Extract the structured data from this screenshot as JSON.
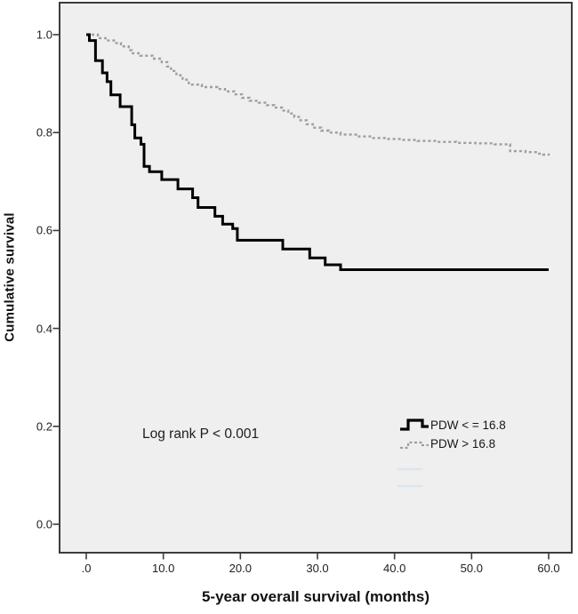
{
  "figure": {
    "y_axis": {
      "title": "Cumulative survival",
      "ticks": [
        {
          "label": "1.0",
          "value": 1.0
        },
        {
          "label": "0.8",
          "value": 0.8
        },
        {
          "label": "0.6",
          "value": 0.6
        },
        {
          "label": "0.4",
          "value": 0.4
        },
        {
          "label": "0.2",
          "value": 0.2
        },
        {
          "label": "0.0",
          "value": 0.0
        }
      ]
    },
    "x_axis": {
      "title": "5-year overall survival (months)",
      "ticks": [
        {
          "label": ".0",
          "value": 0
        },
        {
          "label": "10.0",
          "value": 10
        },
        {
          "label": "20.0",
          "value": 20
        },
        {
          "label": "30.0",
          "value": 30
        },
        {
          "label": "40.0",
          "value": 40
        },
        {
          "label": "50.0",
          "value": 50
        },
        {
          "label": "60.0",
          "value": 60
        }
      ]
    },
    "annotation": "Log rank P < 0.001",
    "legend": {
      "entries": [
        {
          "label": "PDW < = 16.8",
          "style": "solid"
        },
        {
          "label": "PDW > 16.8",
          "style": "dotted"
        }
      ]
    },
    "colors": {
      "solid_curve": "#000000",
      "dotted_curve": "#9e9e9e",
      "plot_background": "#efefef",
      "plot_border": "#3c3c3c",
      "faint_artifact": "#dce5f0",
      "text": "#161616"
    }
  },
  "chart_data": {
    "type": "line",
    "subtype": "kaplan-meier-step",
    "title": "",
    "xlabel": "5-year overall survival (months)",
    "ylabel": "Cumulative survival",
    "xlim": [
      0,
      60
    ],
    "ylim": [
      0.0,
      1.0
    ],
    "x_ticks": [
      0,
      10,
      20,
      30,
      40,
      50,
      60
    ],
    "y_ticks": [
      0.0,
      0.2,
      0.4,
      0.6,
      0.8,
      1.0
    ],
    "grid": false,
    "legend_position": "inside-right-middle",
    "annotation": "Log rank P < 0.001",
    "series": [
      {
        "name": "PDW < = 16.8",
        "style": "solid",
        "color": "#000000",
        "points": [
          [
            0.0,
            1.0
          ],
          [
            0.4,
            0.988
          ],
          [
            1.2,
            0.947
          ],
          [
            2.1,
            0.922
          ],
          [
            2.7,
            0.904
          ],
          [
            3.2,
            0.877
          ],
          [
            4.4,
            0.853
          ],
          [
            5.9,
            0.816
          ],
          [
            6.3,
            0.789
          ],
          [
            7.1,
            0.776
          ],
          [
            7.5,
            0.731
          ],
          [
            8.2,
            0.72
          ],
          [
            9.8,
            0.704
          ],
          [
            11.9,
            0.685
          ],
          [
            13.8,
            0.667
          ],
          [
            14.5,
            0.647
          ],
          [
            16.7,
            0.629
          ],
          [
            17.7,
            0.613
          ],
          [
            19.0,
            0.604
          ],
          [
            19.6,
            0.58
          ],
          [
            25.5,
            0.562
          ],
          [
            29.0,
            0.544
          ],
          [
            31.0,
            0.53
          ],
          [
            33.0,
            0.52
          ],
          [
            60.0,
            0.52
          ]
        ]
      },
      {
        "name": "PDW > 16.8",
        "style": "dotted",
        "color": "#9e9e9e",
        "points": [
          [
            0.0,
            1.0
          ],
          [
            1.5,
            0.993
          ],
          [
            2.5,
            0.988
          ],
          [
            3.6,
            0.983
          ],
          [
            4.5,
            0.976
          ],
          [
            5.5,
            0.968
          ],
          [
            5.9,
            0.962
          ],
          [
            7.0,
            0.957
          ],
          [
            8.6,
            0.951
          ],
          [
            9.8,
            0.944
          ],
          [
            10.5,
            0.935
          ],
          [
            11.0,
            0.926
          ],
          [
            11.7,
            0.917
          ],
          [
            12.5,
            0.908
          ],
          [
            13.3,
            0.898
          ],
          [
            15.0,
            0.893
          ],
          [
            17.0,
            0.889
          ],
          [
            18.0,
            0.884
          ],
          [
            19.2,
            0.878
          ],
          [
            20.2,
            0.871
          ],
          [
            21.2,
            0.865
          ],
          [
            22.4,
            0.861
          ],
          [
            23.4,
            0.856
          ],
          [
            24.4,
            0.851
          ],
          [
            25.4,
            0.845
          ],
          [
            26.2,
            0.839
          ],
          [
            27.0,
            0.832
          ],
          [
            27.8,
            0.825
          ],
          [
            28.6,
            0.817
          ],
          [
            29.4,
            0.81
          ],
          [
            30.5,
            0.804
          ],
          [
            31.5,
            0.8
          ],
          [
            33.0,
            0.796
          ],
          [
            35.0,
            0.792
          ],
          [
            37.0,
            0.789
          ],
          [
            39.0,
            0.787
          ],
          [
            41.0,
            0.785
          ],
          [
            43.0,
            0.783
          ],
          [
            45.5,
            0.781
          ],
          [
            48.0,
            0.779
          ],
          [
            50.5,
            0.778
          ],
          [
            53.0,
            0.776
          ],
          [
            55.0,
            0.762
          ],
          [
            57.0,
            0.76
          ],
          [
            58.5,
            0.757
          ],
          [
            59.3,
            0.755
          ],
          [
            60.0,
            0.753
          ]
        ]
      }
    ]
  }
}
